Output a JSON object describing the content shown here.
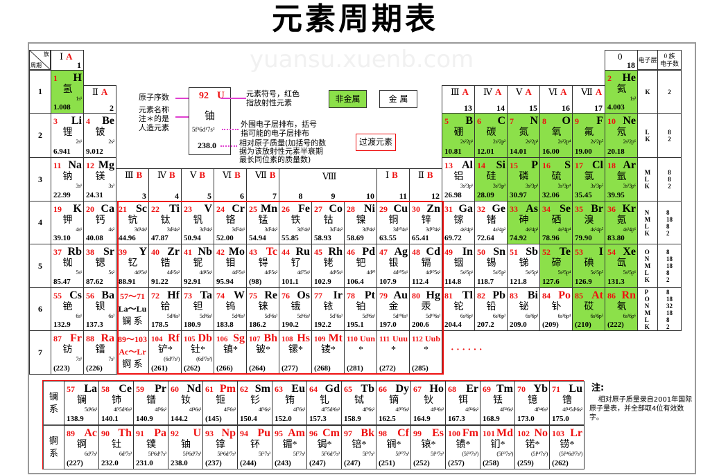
{
  "title": "元素周期表",
  "watermark": "yuansu.xuenb.com",
  "corner": {
    "group": "族",
    "period": "周期"
  },
  "shell_header": "电子层",
  "count_header": "0 族\n电子数",
  "periods": [
    "1",
    "2",
    "3",
    "4",
    "5",
    "6",
    "7"
  ],
  "group_headers": [
    {
      "g": 1,
      "roman": "Ⅰ",
      "sub": "A",
      "num": "1"
    },
    {
      "g": 2,
      "roman": "Ⅱ",
      "sub": "A",
      "num": "2"
    },
    {
      "g": 3,
      "roman": "Ⅲ",
      "sub": "B",
      "num": "3"
    },
    {
      "g": 4,
      "roman": "Ⅳ",
      "sub": "B",
      "num": "4"
    },
    {
      "g": 5,
      "roman": "Ⅴ",
      "sub": "B",
      "num": "5"
    },
    {
      "g": 6,
      "roman": "Ⅵ",
      "sub": "B",
      "num": "6"
    },
    {
      "g": 7,
      "roman": "Ⅶ",
      "sub": "B",
      "num": "7"
    },
    {
      "g": 11,
      "roman": "Ⅰ",
      "sub": "B",
      "num": "11"
    },
    {
      "g": 12,
      "roman": "Ⅱ",
      "sub": "B",
      "num": "12"
    },
    {
      "g": 13,
      "roman": "Ⅲ",
      "sub": "A",
      "num": "13"
    },
    {
      "g": 14,
      "roman": "Ⅳ",
      "sub": "A",
      "num": "14"
    },
    {
      "g": 15,
      "roman": "Ⅴ",
      "sub": "A",
      "num": "15"
    },
    {
      "g": 16,
      "roman": "Ⅵ",
      "sub": "A",
      "num": "16"
    },
    {
      "g": 17,
      "roman": "Ⅶ",
      "sub": "A",
      "num": "17"
    },
    {
      "g": 18,
      "roman": "0",
      "sub": "",
      "num": "18"
    }
  ],
  "group8": {
    "roman": "Ⅷ",
    "nums": [
      "8",
      "9",
      "10"
    ]
  },
  "shells": [
    {
      "s": "K",
      "c": "2"
    },
    {
      "s": "L\nK",
      "c": "8\n2"
    },
    {
      "s": "M\nL\nK",
      "c": "8\n8\n2"
    },
    {
      "s": "N\nM\nL\nK",
      "c": "8\n18\n8\n2"
    },
    {
      "s": "O\nN\nM\nL\nK",
      "c": "8\n18\n18\n8\n2"
    },
    {
      "s": "P\nO\nN\nM\nL\nK",
      "c": "8\n18\n32\n18\n8\n2"
    }
  ],
  "placeholders": [
    {
      "range": "57～71",
      "sym": "La～Lu",
      "name": "镧 系"
    },
    {
      "range": "89～103",
      "sym": "Ac～Lr",
      "name": "锕 系"
    }
  ],
  "dots": "· · · · · ·",
  "series_labels": [
    "镧\n系",
    "锕\n系"
  ],
  "legend": {
    "sample": {
      "z": "92",
      "symbol": "U",
      "name": "铀",
      "config": "5f³6d¹7s²",
      "mass": "238.0"
    },
    "left1": "原子序数",
    "left2": "元素名称\n注＊的是\n人造元素",
    "right1": "元素符号，红色\n指放射性元素",
    "right2": "外围电子层排布，括号\n指可能的电子层排布",
    "right3": "相对原子质量(加括号的数\n据为该放射性元素半衰期\n最长同位素的质量数)",
    "nonmetal": "非金属",
    "metal": "金 属",
    "transition": "过渡元素",
    "nonmetal_color": "#8ce04a",
    "radioactive_color": "#e11111"
  },
  "note": {
    "head": "注:",
    "text": "    相对原子质量录自2001年国际原子量表，并全部取4位有效数字。"
  },
  "elements": [
    {
      "z": 1,
      "s": "H",
      "n": "氢",
      "c": "1s¹",
      "m": "1.008",
      "g": 1,
      "p": 1,
      "nm": true
    },
    {
      "z": 2,
      "s": "He",
      "n": "氦",
      "c": "1s²",
      "m": "4.003",
      "g": 18,
      "p": 1,
      "nm": true
    },
    {
      "z": 3,
      "s": "Li",
      "n": "锂",
      "c": "2s¹",
      "m": "6.941",
      "g": 1,
      "p": 2
    },
    {
      "z": 4,
      "s": "Be",
      "n": "铍",
      "c": "2s²",
      "m": "9.012",
      "g": 2,
      "p": 2
    },
    {
      "z": 5,
      "s": "B",
      "n": "硼",
      "c": "2s²2p¹",
      "m": "10.81",
      "g": 13,
      "p": 2,
      "nm": true
    },
    {
      "z": 6,
      "s": "C",
      "n": "碳",
      "c": "2s²2p²",
      "m": "12.01",
      "g": 14,
      "p": 2,
      "nm": true
    },
    {
      "z": 7,
      "s": "N",
      "n": "氮",
      "c": "2s²2p³",
      "m": "14.01",
      "g": 15,
      "p": 2,
      "nm": true
    },
    {
      "z": 8,
      "s": "O",
      "n": "氧",
      "c": "2s²2p⁴",
      "m": "16.00",
      "g": 16,
      "p": 2,
      "nm": true
    },
    {
      "z": 9,
      "s": "F",
      "n": "氟",
      "c": "2s²2p⁵",
      "m": "19.00",
      "g": 17,
      "p": 2,
      "nm": true
    },
    {
      "z": 10,
      "s": "Ne",
      "n": "氖",
      "c": "2s²2p⁶",
      "m": "20.18",
      "g": 18,
      "p": 2,
      "nm": true
    },
    {
      "z": 11,
      "s": "Na",
      "n": "钠",
      "c": "3s¹",
      "m": "22.99",
      "g": 1,
      "p": 3
    },
    {
      "z": 12,
      "s": "Mg",
      "n": "镁",
      "c": "3s²",
      "m": "24.31",
      "g": 2,
      "p": 3
    },
    {
      "z": 13,
      "s": "Al",
      "n": "铝",
      "c": "3s²3p¹",
      "m": "26.98",
      "g": 13,
      "p": 3
    },
    {
      "z": 14,
      "s": "Si",
      "n": "硅",
      "c": "3s²3p²",
      "m": "28.09",
      "g": 14,
      "p": 3,
      "nm": true
    },
    {
      "z": 15,
      "s": "P",
      "n": "磷",
      "c": "3s²3p³",
      "m": "30.97",
      "g": 15,
      "p": 3,
      "nm": true
    },
    {
      "z": 16,
      "s": "S",
      "n": "硫",
      "c": "3s²3p⁴",
      "m": "32.06",
      "g": 16,
      "p": 3,
      "nm": true
    },
    {
      "z": 17,
      "s": "Cl",
      "n": "氯",
      "c": "3s²3p⁵",
      "m": "35.45",
      "g": 17,
      "p": 3,
      "nm": true
    },
    {
      "z": 18,
      "s": "Ar",
      "n": "氩",
      "c": "3s²3p⁶",
      "m": "39.95",
      "g": 18,
      "p": 3,
      "nm": true
    },
    {
      "z": 19,
      "s": "K",
      "n": "钾",
      "c": "4s¹",
      "m": "39.10",
      "g": 1,
      "p": 4
    },
    {
      "z": 20,
      "s": "Ca",
      "n": "钙",
      "c": "4s²",
      "m": "40.08",
      "g": 2,
      "p": 4
    },
    {
      "z": 21,
      "s": "Sc",
      "n": "钪",
      "c": "3d¹4s²",
      "m": "44.96",
      "g": 3,
      "p": 4
    },
    {
      "z": 22,
      "s": "Ti",
      "n": "钛",
      "c": "3d²4s²",
      "m": "47.87",
      "g": 4,
      "p": 4
    },
    {
      "z": 23,
      "s": "V",
      "n": "钒",
      "c": "3d³4s²",
      "m": "50.94",
      "g": 5,
      "p": 4
    },
    {
      "z": 24,
      "s": "Cr",
      "n": "铬",
      "c": "3d⁵4s¹",
      "m": "52.00",
      "g": 6,
      "p": 4
    },
    {
      "z": 25,
      "s": "Mn",
      "n": "锰",
      "c": "3d⁵4s²",
      "m": "54.94",
      "g": 7,
      "p": 4
    },
    {
      "z": 26,
      "s": "Fe",
      "n": "铁",
      "c": "3d⁶4s²",
      "m": "55.85",
      "g": 8,
      "p": 4
    },
    {
      "z": 27,
      "s": "Co",
      "n": "钴",
      "c": "3d⁷4s²",
      "m": "58.93",
      "g": 9,
      "p": 4
    },
    {
      "z": 28,
      "s": "Ni",
      "n": "镍",
      "c": "3d⁸4s²",
      "m": "58.69",
      "g": 10,
      "p": 4
    },
    {
      "z": 29,
      "s": "Cu",
      "n": "铜",
      "c": "3d¹⁰4s¹",
      "m": "63.55",
      "g": 11,
      "p": 4
    },
    {
      "z": 30,
      "s": "Zn",
      "n": "锌",
      "c": "3d¹⁰4s²",
      "m": "65.41",
      "g": 12,
      "p": 4
    },
    {
      "z": 31,
      "s": "Ga",
      "n": "镓",
      "c": "4s²4p¹",
      "m": "69.72",
      "g": 13,
      "p": 4
    },
    {
      "z": 32,
      "s": "Ge",
      "n": "锗",
      "c": "4s²4p²",
      "m": "72.64",
      "g": 14,
      "p": 4
    },
    {
      "z": 33,
      "s": "As",
      "n": "砷",
      "c": "4s²4p³",
      "m": "74.92",
      "g": 15,
      "p": 4,
      "nm": true
    },
    {
      "z": 34,
      "s": "Se",
      "n": "硒",
      "c": "4s²4p⁴",
      "m": "78.96",
      "g": 16,
      "p": 4,
      "nm": true
    },
    {
      "z": 35,
      "s": "Br",
      "n": "溴",
      "c": "4s²4p⁵",
      "m": "79.90",
      "g": 17,
      "p": 4,
      "nm": true
    },
    {
      "z": 36,
      "s": "Kr",
      "n": "氪",
      "c": "4s²4p⁶",
      "m": "83.80",
      "g": 18,
      "p": 4,
      "nm": true
    },
    {
      "z": 37,
      "s": "Rb",
      "n": "铷",
      "c": "5s¹",
      "m": "85.47",
      "g": 1,
      "p": 5
    },
    {
      "z": 38,
      "s": "Sr",
      "n": "锶",
      "c": "5s²",
      "m": "87.62",
      "g": 2,
      "p": 5
    },
    {
      "z": 39,
      "s": "Y",
      "n": "钇",
      "c": "4d¹5s²",
      "m": "88.91",
      "g": 3,
      "p": 5
    },
    {
      "z": 40,
      "s": "Zr",
      "n": "锆",
      "c": "4d²5s²",
      "m": "91.22",
      "g": 4,
      "p": 5
    },
    {
      "z": 41,
      "s": "Nb",
      "n": "铌",
      "c": "4d⁴5s¹",
      "m": "92.91",
      "g": 5,
      "p": 5
    },
    {
      "z": 42,
      "s": "Mo",
      "n": "钼",
      "c": "4d⁵5s¹",
      "m": "95.94",
      "g": 6,
      "p": 5
    },
    {
      "z": 43,
      "s": "Tc",
      "n": "锝",
      "c": "4d⁵5s²",
      "m": "(98)",
      "g": 7,
      "p": 5,
      "r": true
    },
    {
      "z": 44,
      "s": "Ru",
      "n": "钌",
      "c": "4d⁷5s¹",
      "m": "101.1",
      "g": 8,
      "p": 5
    },
    {
      "z": 45,
      "s": "Rh",
      "n": "铑",
      "c": "4d⁸5s¹",
      "m": "102.9",
      "g": 9,
      "p": 5
    },
    {
      "z": 46,
      "s": "Pd",
      "n": "钯",
      "c": "4d¹⁰",
      "m": "106.4",
      "g": 10,
      "p": 5
    },
    {
      "z": 47,
      "s": "Ag",
      "n": "银",
      "c": "4d¹⁰5s¹",
      "m": "107.9",
      "g": 11,
      "p": 5
    },
    {
      "z": 48,
      "s": "Cd",
      "n": "镉",
      "c": "4d¹⁰5s²",
      "m": "112.4",
      "g": 12,
      "p": 5
    },
    {
      "z": 49,
      "s": "In",
      "n": "铟",
      "c": "5s²5p¹",
      "m": "114.8",
      "g": 13,
      "p": 5
    },
    {
      "z": 50,
      "s": "Sn",
      "n": "锡",
      "c": "5s²5p²",
      "m": "118.7",
      "g": 14,
      "p": 5
    },
    {
      "z": 51,
      "s": "Sb",
      "n": "锑",
      "c": "5s²5p³",
      "m": "121.8",
      "g": 15,
      "p": 5
    },
    {
      "z": 52,
      "s": "Te",
      "n": "碲",
      "c": "5s²5p⁴",
      "m": "127.6",
      "g": 16,
      "p": 5,
      "nm": true
    },
    {
      "z": 53,
      "s": "I",
      "n": "碘",
      "c": "5s²5p⁵",
      "m": "126.9",
      "g": 17,
      "p": 5,
      "nm": true
    },
    {
      "z": 54,
      "s": "Xe",
      "n": "氙",
      "c": "5s²5p⁶",
      "m": "131.3",
      "g": 18,
      "p": 5,
      "nm": true
    },
    {
      "z": 55,
      "s": "Cs",
      "n": "铯",
      "c": "6s¹",
      "m": "132.9",
      "g": 1,
      "p": 6
    },
    {
      "z": 56,
      "s": "Ba",
      "n": "钡",
      "c": "6s²",
      "m": "137.3",
      "g": 2,
      "p": 6
    },
    {
      "z": 72,
      "s": "Hf",
      "n": "铪",
      "c": "5d²6s²",
      "m": "178.5",
      "g": 4,
      "p": 6
    },
    {
      "z": 73,
      "s": "Ta",
      "n": "钽",
      "c": "5d³6s²",
      "m": "180.9",
      "g": 5,
      "p": 6
    },
    {
      "z": 74,
      "s": "W",
      "n": "钨",
      "c": "5d⁴6s²",
      "m": "183.8",
      "g": 6,
      "p": 6
    },
    {
      "z": 75,
      "s": "Re",
      "n": "铼",
      "c": "5d⁵6s²",
      "m": "186.2",
      "g": 7,
      "p": 6
    },
    {
      "z": 76,
      "s": "Os",
      "n": "锇",
      "c": "5d⁶6s²",
      "m": "190.2",
      "g": 8,
      "p": 6
    },
    {
      "z": 77,
      "s": "Ir",
      "n": "铱",
      "c": "5d⁷6s²",
      "m": "192.2",
      "g": 9,
      "p": 6
    },
    {
      "z": 78,
      "s": "Pt",
      "n": "铂",
      "c": "5d⁹6s¹",
      "m": "195.1",
      "g": 10,
      "p": 6
    },
    {
      "z": 79,
      "s": "Au",
      "n": "金",
      "c": "5d¹⁰6s¹",
      "m": "197.0",
      "g": 11,
      "p": 6
    },
    {
      "z": 80,
      "s": "Hg",
      "n": "汞",
      "c": "5d¹⁰6s²",
      "m": "200.6",
      "g": 12,
      "p": 6
    },
    {
      "z": 81,
      "s": "Tl",
      "n": "铊",
      "c": "6s²6p¹",
      "m": "204.4",
      "g": 13,
      "p": 6
    },
    {
      "z": 82,
      "s": "Pb",
      "n": "铅",
      "c": "6s²6p²",
      "m": "207.2",
      "g": 14,
      "p": 6
    },
    {
      "z": 83,
      "s": "Bi",
      "n": "铋",
      "c": "6s²6p³",
      "m": "209.0",
      "g": 15,
      "p": 6
    },
    {
      "z": 84,
      "s": "Po",
      "n": "钋",
      "c": "6s²6p⁴",
      "m": "(209)",
      "g": 16,
      "p": 6,
      "r": true
    },
    {
      "z": 85,
      "s": "At",
      "n": "砹",
      "c": "6s²6p⁵",
      "m": "(210)",
      "g": 17,
      "p": 6,
      "nm": true,
      "r": true
    },
    {
      "z": 86,
      "s": "Rn",
      "n": "氡",
      "c": "6s²6p⁶",
      "m": "(222)",
      "g": 18,
      "p": 6,
      "nm": true,
      "r": true
    },
    {
      "z": 87,
      "s": "Fr",
      "n": "钫",
      "c": "7s¹",
      "m": "(223)",
      "g": 1,
      "p": 7,
      "r": true
    },
    {
      "z": 88,
      "s": "Ra",
      "n": "镭",
      "c": "7s²",
      "m": "(226)",
      "g": 2,
      "p": 7,
      "r": true
    },
    {
      "z": 104,
      "s": "Rf",
      "n": "铲*",
      "c": "(6d²7s²)",
      "m": "(261)",
      "g": 4,
      "p": 7,
      "r": true
    },
    {
      "z": 105,
      "s": "Db",
      "n": "钍*",
      "c": "(6d³7s²)",
      "m": "(262)",
      "g": 5,
      "p": 7,
      "r": true
    },
    {
      "z": 106,
      "s": "Sg",
      "n": "镇*",
      "c": "",
      "m": "(266)",
      "g": 6,
      "p": 7,
      "r": true
    },
    {
      "z": 107,
      "s": "Bh",
      "n": "铍*",
      "c": "",
      "m": "(264)",
      "g": 7,
      "p": 7,
      "r": true
    },
    {
      "z": 108,
      "s": "Hs",
      "n": "镙*",
      "c": "",
      "m": "(277)",
      "g": 8,
      "p": 7,
      "r": true
    },
    {
      "z": 109,
      "s": "Mt",
      "n": "鿏*",
      "c": "",
      "m": "(268)",
      "g": 9,
      "p": 7,
      "r": true
    },
    {
      "z": 110,
      "s": "Uun",
      "n": "*",
      "c": "",
      "m": "(281)",
      "g": 10,
      "p": 7,
      "r": true
    },
    {
      "z": 111,
      "s": "Uuu",
      "n": "*",
      "c": "",
      "m": "(272)",
      "g": 11,
      "p": 7,
      "r": true
    },
    {
      "z": 112,
      "s": "Uub",
      "n": "*",
      "c": "",
      "m": "(285)",
      "g": 12,
      "p": 7,
      "r": true
    }
  ],
  "lanthanides": [
    {
      "z": 57,
      "s": "La",
      "n": "镧",
      "c": "5d¹6s²",
      "m": "138.9"
    },
    {
      "z": 58,
      "s": "Ce",
      "n": "铈",
      "c": "4f¹5d¹6s²",
      "m": "140.1"
    },
    {
      "z": 59,
      "s": "Pr",
      "n": "镨",
      "c": "4f³6s²",
      "m": "140.9"
    },
    {
      "z": 60,
      "s": "Nd",
      "n": "钕",
      "c": "4f⁴6s²",
      "m": "144.2"
    },
    {
      "z": 61,
      "s": "Pm",
      "n": "钷",
      "c": "4f⁵6s²",
      "m": "(145)",
      "r": true
    },
    {
      "z": 62,
      "s": "Sm",
      "n": "钐",
      "c": "4f⁶6s²",
      "m": "150.4"
    },
    {
      "z": 63,
      "s": "Eu",
      "n": "铕",
      "c": "4f⁷6s²",
      "m": "152.0"
    },
    {
      "z": 64,
      "s": "Gd",
      "n": "钆",
      "c": "4f⁷5d¹6s²",
      "m": "157.3"
    },
    {
      "z": 65,
      "s": "Tb",
      "n": "铽",
      "c": "4f⁹6s²",
      "m": "158.9"
    },
    {
      "z": 66,
      "s": "Dy",
      "n": "镝",
      "c": "4f¹⁰6s²",
      "m": "162.5"
    },
    {
      "z": 67,
      "s": "Ho",
      "n": "钬",
      "c": "4f¹¹6s²",
      "m": "164.9"
    },
    {
      "z": 68,
      "s": "Er",
      "n": "铒",
      "c": "4f¹²6s²",
      "m": "167.3"
    },
    {
      "z": 69,
      "s": "Tm",
      "n": "铥",
      "c": "4f¹³6s²",
      "m": "168.9"
    },
    {
      "z": 70,
      "s": "Yb",
      "n": "镱",
      "c": "4f¹⁴6s²",
      "m": "173.0"
    },
    {
      "z": 71,
      "s": "Lu",
      "n": "镥",
      "c": "4f¹⁴5d¹6s²",
      "m": "175.0"
    }
  ],
  "actinides": [
    {
      "z": 89,
      "s": "Ac",
      "n": "锕",
      "c": "6d¹7s²",
      "m": "(227)",
      "r": true
    },
    {
      "z": 90,
      "s": "Th",
      "n": "钍",
      "c": "6d²7s²",
      "m": "232.0",
      "r": true
    },
    {
      "z": 91,
      "s": "Pa",
      "n": "镤",
      "c": "5f²6d¹7s²",
      "m": "231.0",
      "r": true
    },
    {
      "z": 92,
      "s": "U",
      "n": "铀",
      "c": "5f³6d¹7s²",
      "m": "238.0",
      "r": true
    },
    {
      "z": 93,
      "s": "Np",
      "n": "镎",
      "c": "5f⁴6d¹7s²",
      "m": "(237)",
      "r": true
    },
    {
      "z": 94,
      "s": "Pu",
      "n": "钚",
      "c": "5f⁶7s²",
      "m": "(244)",
      "r": true
    },
    {
      "z": 95,
      "s": "Am",
      "n": "镅*",
      "c": "5f⁷7s²",
      "m": "(243)",
      "r": true
    },
    {
      "z": 96,
      "s": "Cm",
      "n": "锔*",
      "c": "5f⁷6d¹7s²",
      "m": "(247)",
      "r": true
    },
    {
      "z": 97,
      "s": "Bk",
      "n": "锫*",
      "c": "5f⁹7s²",
      "m": "(247)",
      "r": true
    },
    {
      "z": 98,
      "s": "Cf",
      "n": "锎*",
      "c": "5f¹⁰7s²",
      "m": "(251)",
      "r": true
    },
    {
      "z": 99,
      "s": "Es",
      "n": "锿*",
      "c": "5f¹¹7s²",
      "m": "(252)",
      "r": true
    },
    {
      "z": 100,
      "s": "Fm",
      "n": "镄*",
      "c": "(5f¹²7s²)",
      "m": "(257)",
      "r": true
    },
    {
      "z": 101,
      "s": "Md",
      "n": "钔*",
      "c": "(5f¹³7s²)",
      "m": "(258)",
      "r": true
    },
    {
      "z": 102,
      "s": "No",
      "n": "锘*",
      "c": "(5f¹⁴7s²)",
      "m": "(259)",
      "r": true
    },
    {
      "z": 103,
      "s": "Lr",
      "n": "铹*",
      "c": "(5f¹⁴6d¹7s²)",
      "m": "(262)",
      "r": true
    }
  ]
}
